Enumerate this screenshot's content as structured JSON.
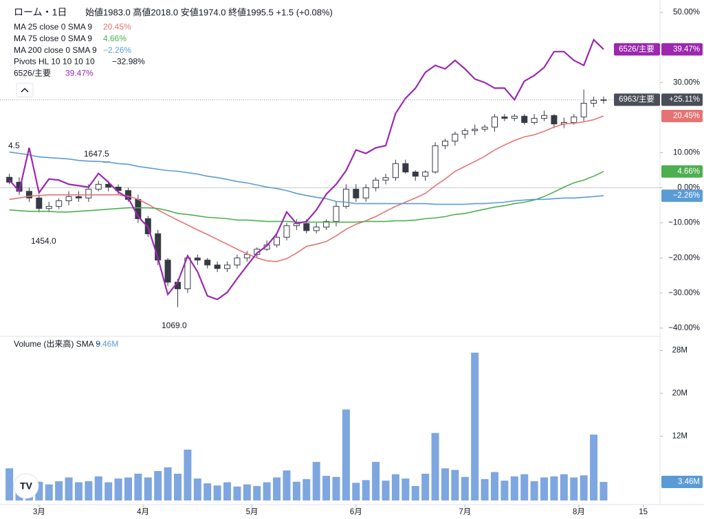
{
  "chart_data": {
    "type": "candlestick",
    "title": "ローム・1日",
    "ohlc_header": "始値1983.0 高値2018.0 安値1974.0 終値1995.5 +1.5 (+0.08%)",
    "x": [
      -6,
      -4,
      -2,
      0,
      2,
      4,
      6,
      8,
      10,
      12,
      14,
      16,
      18,
      20,
      22,
      24,
      26,
      28,
      30,
      32,
      34,
      36,
      38,
      40,
      42,
      44,
      46,
      48,
      50,
      52,
      54,
      56,
      58,
      60,
      62,
      64,
      66,
      68,
      70,
      72,
      74,
      76,
      78,
      80,
      82,
      84,
      86,
      88,
      90,
      92,
      94,
      96,
      98,
      100,
      102,
      104,
      106,
      108,
      110,
      112,
      114
    ],
    "xlim": [
      -6.5,
      124
    ],
    "xticks": [
      {
        "value": 0,
        "label": "3月"
      },
      {
        "value": 21,
        "label": "4月"
      },
      {
        "value": 43,
        "label": "5月"
      },
      {
        "value": 64,
        "label": "6月"
      },
      {
        "value": 86,
        "label": "7月"
      },
      {
        "value": 109,
        "label": "8月"
      },
      {
        "value": 122,
        "label": "15"
      }
    ],
    "ylim": [
      -40,
      50
    ],
    "yticks": [
      {
        "value": 50,
        "label": "50.00%"
      },
      {
        "value": 30,
        "label": "30.00%"
      },
      {
        "value": 10,
        "label": "10.00%"
      },
      {
        "value": 0,
        "label": "0.00%"
      },
      {
        "value": -10,
        "label": "−10.00%"
      },
      {
        "value": -20,
        "label": "−20.00%"
      },
      {
        "value": -30,
        "label": "−30.00%"
      },
      {
        "value": -40,
        "label": "−40.00%"
      }
    ],
    "zero_line": true,
    "candles": {
      "name": "6963/主要",
      "value_label": "+25.11%",
      "up_color": "#ffffff",
      "down_color": "#363a45",
      "badge_color": "#4a4e59",
      "open": [
        3.0,
        1.6,
        -1.0,
        -2.9,
        -5.9,
        -5.3,
        -3.7,
        -2.5,
        -2.9,
        -0.4,
        1.0,
        0.2,
        -0.8,
        -3.3,
        -8.8,
        -13.1,
        -20.6,
        -26.9,
        -28.8,
        -20.0,
        -20.6,
        -22.0,
        -23.0,
        -22.0,
        -20.0,
        -19.0,
        -17.5,
        -16.3,
        -14.1,
        -10.8,
        -10.2,
        -12.2,
        -11.2,
        -9.6,
        -5.3,
        -0.4,
        -2.9,
        0.0,
        2.2,
        2.9,
        6.9,
        4.5,
        3.3,
        4.5,
        12.0,
        13.3,
        15.3,
        16.3,
        16.7,
        17.3,
        20.2,
        19.8,
        20.4,
        18.6,
        19.8,
        20.6,
        18.2,
        18.6,
        20.2,
        24.1,
        24.9
      ],
      "high": [
        4,
        3,
        0,
        -2,
        -4,
        -3,
        -1,
        -1,
        1,
        2,
        2,
        1,
        0,
        -2,
        -8,
        -12,
        -20,
        -26,
        -19,
        -19,
        -20,
        -21,
        -21,
        -19,
        -18,
        -17,
        -15,
        -13,
        -10,
        -9,
        -9,
        -10,
        -9,
        -4,
        1,
        1,
        1,
        3,
        4,
        8,
        8,
        5,
        5,
        13,
        14,
        16,
        17,
        18,
        18,
        21,
        21,
        21,
        21,
        21,
        22,
        21,
        20,
        21,
        28,
        26,
        26
      ],
      "low": [
        1,
        -2,
        -4,
        -7,
        -7,
        -6,
        -5,
        -4,
        -4,
        -1,
        -1,
        -2,
        -4,
        -10,
        -14,
        -22,
        -28,
        -34,
        -30,
        -22,
        -23,
        -24,
        -24,
        -23,
        -21,
        -20,
        -18,
        -17,
        -15,
        -12,
        -13,
        -13,
        -12,
        -11,
        -6,
        -4,
        -4,
        -1,
        1,
        2,
        4,
        2,
        2,
        4,
        11,
        12,
        14,
        15,
        16,
        16,
        19,
        19,
        18,
        18,
        19,
        17,
        17,
        18,
        19,
        23,
        24
      ],
      "close": [
        1.6,
        -1.0,
        -2.9,
        -5.9,
        -5.3,
        -3.7,
        -2.5,
        -2.9,
        -0.4,
        1.0,
        0.2,
        -0.8,
        -3.3,
        -8.8,
        -13.1,
        -20.6,
        -26.9,
        -28.8,
        -20.0,
        -20.6,
        -22.0,
        -23.0,
        -22.0,
        -20.0,
        -19.0,
        -17.5,
        -16.3,
        -14.1,
        -10.8,
        -10.2,
        -12.2,
        -11.2,
        -9.6,
        -5.3,
        -0.4,
        -2.9,
        0.0,
        2.2,
        2.9,
        6.9,
        4.5,
        3.3,
        4.5,
        12.0,
        13.3,
        15.3,
        16.3,
        16.7,
        17.3,
        20.2,
        19.8,
        20.4,
        18.6,
        19.8,
        20.6,
        18.2,
        18.6,
        20.2,
        24.1,
        24.9,
        25.11
      ]
    },
    "series": [
      {
        "name": "MA 25 close 0 SMA 9",
        "value_label": "20.45%",
        "color": "#e57373",
        "values": [
          -3.3,
          -2.9,
          -2.4,
          -2.2,
          -2.0,
          -2.0,
          -2.0,
          -2.0,
          -2.0,
          -2.0,
          -2.0,
          -2.0,
          -2.4,
          -3.3,
          -4.7,
          -6.3,
          -7.8,
          -9.2,
          -10.6,
          -12.0,
          -13.3,
          -14.7,
          -16.1,
          -17.5,
          -18.8,
          -20.0,
          -20.8,
          -21.0,
          -20.2,
          -18.6,
          -16.7,
          -16.1,
          -15.3,
          -13.7,
          -11.8,
          -10.4,
          -9.4,
          -8.2,
          -6.7,
          -5.3,
          -4.1,
          -2.9,
          -1.6,
          0.6,
          2.5,
          4.7,
          6.1,
          7.5,
          9.0,
          10.8,
          12.2,
          13.5,
          14.5,
          15.1,
          16.1,
          17.3,
          18.2,
          18.4,
          18.8,
          19.4,
          20.45
        ]
      },
      {
        "name": "MA 75 close 0 SMA 9",
        "value_label": "4.66%",
        "color": "#4caf50",
        "values": [
          -6.3,
          -6.5,
          -6.7,
          -6.7,
          -6.7,
          -6.9,
          -6.9,
          -6.7,
          -6.5,
          -6.3,
          -6.1,
          -5.9,
          -5.7,
          -5.7,
          -5.7,
          -5.9,
          -6.5,
          -7.3,
          -7.6,
          -8.0,
          -8.4,
          -8.6,
          -8.8,
          -9.2,
          -9.2,
          -9.4,
          -9.6,
          -9.6,
          -9.6,
          -9.8,
          -9.8,
          -9.8,
          -9.8,
          -9.8,
          -9.8,
          -9.8,
          -9.6,
          -9.6,
          -9.6,
          -9.4,
          -9.4,
          -9.2,
          -8.8,
          -8.6,
          -8.2,
          -7.6,
          -7.3,
          -6.7,
          -6.1,
          -5.5,
          -5.1,
          -4.5,
          -4.1,
          -3.5,
          -2.5,
          -1.2,
          0.2,
          1.4,
          2.2,
          3.3,
          4.66
        ]
      },
      {
        "name": "MA 200 close 0 SMA 9",
        "value_label": "−2.26%",
        "color": "#5b9bd5",
        "values": [
          10.2,
          9.8,
          9.4,
          8.8,
          8.6,
          8.4,
          8.2,
          7.8,
          7.6,
          7.5,
          7.3,
          6.9,
          6.7,
          6.1,
          5.7,
          5.3,
          4.9,
          4.7,
          4.3,
          3.9,
          3.3,
          2.9,
          2.4,
          1.8,
          1.4,
          0.8,
          0.2,
          -0.2,
          -0.8,
          -1.6,
          -2.2,
          -2.7,
          -3.1,
          -3.9,
          -4.1,
          -4.5,
          -4.5,
          -4.5,
          -4.5,
          -4.5,
          -4.5,
          -4.5,
          -4.5,
          -4.7,
          -4.7,
          -4.7,
          -4.7,
          -4.5,
          -4.5,
          -4.3,
          -4.1,
          -3.7,
          -3.5,
          -3.3,
          -3.3,
          -3.1,
          -2.9,
          -2.9,
          -2.7,
          -2.5,
          -2.26
        ]
      },
      {
        "name": "6526/主要",
        "value_label": "39.47%",
        "color": "#9c27b0",
        "badge": true,
        "values": [
          2.2,
          -1.0,
          11.4,
          -1.4,
          2.5,
          2.2,
          1.0,
          0.6,
          0.2,
          4.1,
          1.6,
          -1.2,
          -2.9,
          -8.2,
          -11.2,
          -20.0,
          -30.4,
          -26.9,
          -19.4,
          -23.9,
          -30.8,
          -31.8,
          -29.8,
          -25.9,
          -22.2,
          -18.6,
          -16.5,
          -13.1,
          -6.9,
          -10.2,
          -9.6,
          -6.3,
          -1.8,
          1.0,
          4.9,
          10.8,
          9.8,
          11.4,
          12.0,
          21.2,
          25.5,
          28.4,
          32.9,
          34.9,
          33.9,
          36.3,
          33.9,
          31.0,
          30.0,
          28.4,
          28.4,
          25.1,
          30.4,
          32.0,
          34.3,
          38.8,
          38.8,
          36.3,
          34.9,
          42.2,
          39.47
        ]
      }
    ],
    "pivots": {
      "name": "Pivots HL 10 10 10 10",
      "value_label": "−32.98%",
      "labels": [
        "4.5",
        "1647.5",
        "1454.0",
        "1069.0"
      ]
    },
    "volume": {
      "title": "Volume (出来高) SMA 9",
      "sma": 3.46,
      "sma_label": "3.46M",
      "color": "#7ea6e0",
      "ylim": [
        0,
        28
      ],
      "yticks": [
        {
          "value": 28,
          "label": "28M"
        },
        {
          "value": 20,
          "label": "20M"
        },
        {
          "value": 12,
          "label": "12M"
        }
      ],
      "values": [
        6,
        3.5,
        3.2,
        3.5,
        3.0,
        3.6,
        4.3,
        3.4,
        3.6,
        4.5,
        3.4,
        4.1,
        4.3,
        5.0,
        4.3,
        5.5,
        6.2,
        5.0,
        9.5,
        4.1,
        3.2,
        2.8,
        3.4,
        2.6,
        3.0,
        2.7,
        3.4,
        4.3,
        5.6,
        3.5,
        4.0,
        7.2,
        4.6,
        4.4,
        17.0,
        3.3,
        3.8,
        7.2,
        3.7,
        4.9,
        4.1,
        2.7,
        5.0,
        12.6,
        6.0,
        5.7,
        4.4,
        27.6,
        4.0,
        5.3,
        3.7,
        4.5,
        4.9,
        3.6,
        4.3,
        4.5,
        4.9,
        4.3,
        4.7,
        12.3,
        3.46
      ]
    }
  }
}
